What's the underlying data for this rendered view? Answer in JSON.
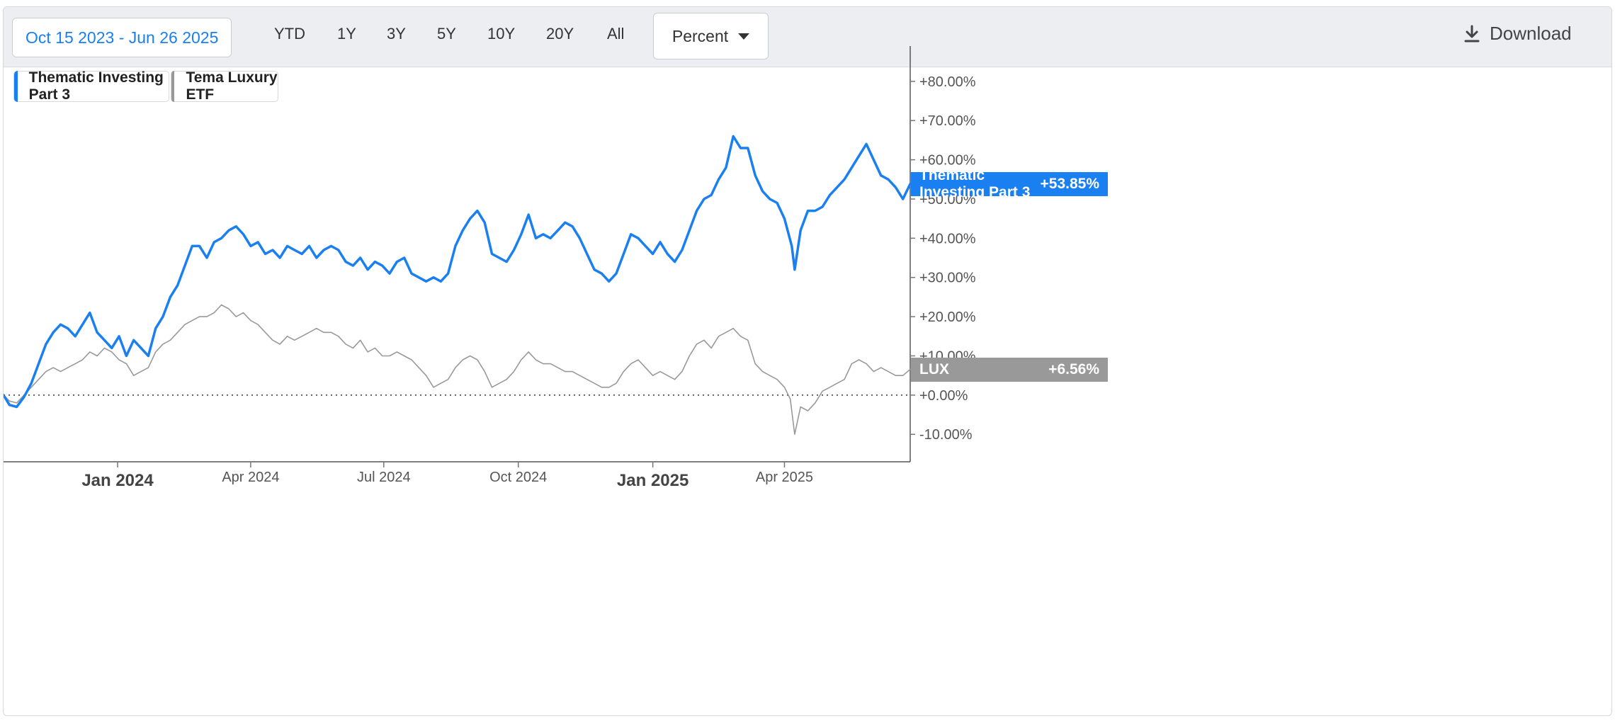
{
  "toolbar": {
    "date_range": "Oct 15 2023 - Jun 26 2025",
    "periods": [
      "YTD",
      "1Y",
      "3Y",
      "5Y",
      "10Y",
      "20Y",
      "All"
    ],
    "mode": "Percent",
    "download_label": "Download"
  },
  "colors": {
    "primary": "#1a7ff0",
    "secondary": "#999999"
  },
  "chart_data": {
    "type": "line",
    "y_unit": "percent",
    "ylim": [
      -17,
      89
    ],
    "x_range": [
      "2023-10-15",
      "2025-06-26"
    ],
    "x_ticks": [
      {
        "date": "2024-01-01",
        "label": "Jan 2024",
        "major": true
      },
      {
        "date": "2024-04-01",
        "label": "Apr 2024",
        "major": false
      },
      {
        "date": "2024-07-01",
        "label": "Jul 2024",
        "major": false
      },
      {
        "date": "2024-10-01",
        "label": "Oct 2024",
        "major": false
      },
      {
        "date": "2025-01-01",
        "label": "Jan 2025",
        "major": true
      },
      {
        "date": "2025-04-01",
        "label": "Apr 2025",
        "major": false
      }
    ],
    "y_ticks": [
      {
        "value": 80,
        "label": "+80.00%"
      },
      {
        "value": 70,
        "label": "+70.00%"
      },
      {
        "value": 60,
        "label": "+60.00%"
      },
      {
        "value": 50,
        "label": "+50.00%"
      },
      {
        "value": 40,
        "label": "+40.00%"
      },
      {
        "value": 30,
        "label": "+30.00%"
      },
      {
        "value": 20,
        "label": "+20.00%"
      },
      {
        "value": 10,
        "label": "+10.00%"
      },
      {
        "value": 0,
        "label": "+0.00%"
      },
      {
        "value": -10,
        "label": "-10.00%"
      }
    ],
    "zero_line": true,
    "series": [
      {
        "name": "Thematic Investing Part 3",
        "end_label": "Thematic Investing Part 3",
        "end_value_label": "+53.85%",
        "color": "#1a7ff0",
        "points": [
          [
            "2023-10-15",
            0
          ],
          [
            "2023-10-19",
            -2.5
          ],
          [
            "2023-10-24",
            -3
          ],
          [
            "2023-10-29",
            -0.5
          ],
          [
            "2023-11-03",
            3
          ],
          [
            "2023-11-08",
            8
          ],
          [
            "2023-11-13",
            13
          ],
          [
            "2023-11-18",
            16
          ],
          [
            "2023-11-23",
            18
          ],
          [
            "2023-11-28",
            17
          ],
          [
            "2023-12-03",
            15
          ],
          [
            "2023-12-08",
            18
          ],
          [
            "2023-12-13",
            21
          ],
          [
            "2023-12-18",
            16
          ],
          [
            "2023-12-23",
            14
          ],
          [
            "2023-12-28",
            12
          ],
          [
            "2024-01-02",
            15
          ],
          [
            "2024-01-07",
            10
          ],
          [
            "2024-01-12",
            14
          ],
          [
            "2024-01-17",
            12
          ],
          [
            "2024-01-22",
            10
          ],
          [
            "2024-01-27",
            17
          ],
          [
            "2024-02-01",
            20
          ],
          [
            "2024-02-06",
            25
          ],
          [
            "2024-02-11",
            28
          ],
          [
            "2024-02-16",
            33
          ],
          [
            "2024-02-21",
            38
          ],
          [
            "2024-02-26",
            38
          ],
          [
            "2024-03-02",
            35
          ],
          [
            "2024-03-07",
            39
          ],
          [
            "2024-03-12",
            40
          ],
          [
            "2024-03-17",
            42
          ],
          [
            "2024-03-22",
            43
          ],
          [
            "2024-03-27",
            41
          ],
          [
            "2024-04-01",
            38
          ],
          [
            "2024-04-06",
            39
          ],
          [
            "2024-04-11",
            36
          ],
          [
            "2024-04-16",
            37
          ],
          [
            "2024-04-21",
            35
          ],
          [
            "2024-04-26",
            38
          ],
          [
            "2024-05-01",
            37
          ],
          [
            "2024-05-06",
            36
          ],
          [
            "2024-05-11",
            38
          ],
          [
            "2024-05-16",
            35
          ],
          [
            "2024-05-21",
            37
          ],
          [
            "2024-05-26",
            38
          ],
          [
            "2024-05-31",
            37
          ],
          [
            "2024-06-05",
            34
          ],
          [
            "2024-06-10",
            33
          ],
          [
            "2024-06-15",
            35
          ],
          [
            "2024-06-20",
            32
          ],
          [
            "2024-06-25",
            34
          ],
          [
            "2024-06-30",
            33
          ],
          [
            "2024-07-05",
            31
          ],
          [
            "2024-07-10",
            34
          ],
          [
            "2024-07-15",
            35
          ],
          [
            "2024-07-20",
            31
          ],
          [
            "2024-07-25",
            30
          ],
          [
            "2024-07-30",
            29
          ],
          [
            "2024-08-04",
            30
          ],
          [
            "2024-08-09",
            29
          ],
          [
            "2024-08-14",
            31
          ],
          [
            "2024-08-19",
            38
          ],
          [
            "2024-08-24",
            42
          ],
          [
            "2024-08-29",
            45
          ],
          [
            "2024-09-03",
            47
          ],
          [
            "2024-09-08",
            44
          ],
          [
            "2024-09-13",
            36
          ],
          [
            "2024-09-18",
            35
          ],
          [
            "2024-09-23",
            34
          ],
          [
            "2024-09-28",
            37
          ],
          [
            "2024-10-03",
            41
          ],
          [
            "2024-10-08",
            46
          ],
          [
            "2024-10-13",
            40
          ],
          [
            "2024-10-18",
            41
          ],
          [
            "2024-10-23",
            40
          ],
          [
            "2024-10-28",
            42
          ],
          [
            "2024-11-02",
            44
          ],
          [
            "2024-11-07",
            43
          ],
          [
            "2024-11-12",
            40
          ],
          [
            "2024-11-17",
            36
          ],
          [
            "2024-11-22",
            32
          ],
          [
            "2024-11-27",
            31
          ],
          [
            "2024-12-02",
            29
          ],
          [
            "2024-12-07",
            31
          ],
          [
            "2024-12-12",
            36
          ],
          [
            "2024-12-17",
            41
          ],
          [
            "2024-12-22",
            40
          ],
          [
            "2024-12-27",
            38
          ],
          [
            "2025-01-01",
            36
          ],
          [
            "2025-01-06",
            39
          ],
          [
            "2025-01-11",
            36
          ],
          [
            "2025-01-16",
            34
          ],
          [
            "2025-01-21",
            37
          ],
          [
            "2025-01-26",
            42
          ],
          [
            "2025-01-31",
            47
          ],
          [
            "2025-02-05",
            50
          ],
          [
            "2025-02-10",
            51
          ],
          [
            "2025-02-15",
            55
          ],
          [
            "2025-02-20",
            58
          ],
          [
            "2025-02-25",
            66
          ],
          [
            "2025-03-02",
            63
          ],
          [
            "2025-03-07",
            63
          ],
          [
            "2025-03-12",
            56
          ],
          [
            "2025-03-17",
            52
          ],
          [
            "2025-03-22",
            50
          ],
          [
            "2025-03-27",
            49
          ],
          [
            "2025-04-01",
            45
          ],
          [
            "2025-04-06",
            38
          ],
          [
            "2025-04-08",
            32
          ],
          [
            "2025-04-12",
            42
          ],
          [
            "2025-04-17",
            47
          ],
          [
            "2025-04-22",
            47
          ],
          [
            "2025-04-27",
            48
          ],
          [
            "2025-05-02",
            51
          ],
          [
            "2025-05-07",
            53
          ],
          [
            "2025-05-12",
            55
          ],
          [
            "2025-05-17",
            58
          ],
          [
            "2025-05-22",
            61
          ],
          [
            "2025-05-27",
            64
          ],
          [
            "2025-06-01",
            60
          ],
          [
            "2025-06-06",
            56
          ],
          [
            "2025-06-11",
            55
          ],
          [
            "2025-06-16",
            53
          ],
          [
            "2025-06-21",
            50
          ],
          [
            "2025-06-26",
            53.85
          ]
        ]
      },
      {
        "name": "Tema Luxury ETF",
        "end_label": "LUX",
        "end_value_label": "+6.56%",
        "color": "#999999",
        "points": [
          [
            "2023-10-15",
            0
          ],
          [
            "2023-10-19",
            -1.5
          ],
          [
            "2023-10-24",
            -2
          ],
          [
            "2023-10-29",
            0
          ],
          [
            "2023-11-03",
            2
          ],
          [
            "2023-11-08",
            4
          ],
          [
            "2023-11-13",
            6
          ],
          [
            "2023-11-18",
            7
          ],
          [
            "2023-11-23",
            6
          ],
          [
            "2023-11-28",
            7
          ],
          [
            "2023-12-03",
            8
          ],
          [
            "2023-12-08",
            9
          ],
          [
            "2023-12-13",
            11
          ],
          [
            "2023-12-18",
            10
          ],
          [
            "2023-12-23",
            12
          ],
          [
            "2023-12-28",
            11
          ],
          [
            "2024-01-02",
            9
          ],
          [
            "2024-01-07",
            8
          ],
          [
            "2024-01-12",
            5
          ],
          [
            "2024-01-17",
            6
          ],
          [
            "2024-01-22",
            7
          ],
          [
            "2024-01-27",
            11
          ],
          [
            "2024-02-01",
            13
          ],
          [
            "2024-02-06",
            14
          ],
          [
            "2024-02-11",
            16
          ],
          [
            "2024-02-16",
            18
          ],
          [
            "2024-02-21",
            19
          ],
          [
            "2024-02-26",
            20
          ],
          [
            "2024-03-02",
            20
          ],
          [
            "2024-03-07",
            21
          ],
          [
            "2024-03-12",
            23
          ],
          [
            "2024-03-17",
            22
          ],
          [
            "2024-03-22",
            20
          ],
          [
            "2024-03-27",
            21
          ],
          [
            "2024-04-01",
            19
          ],
          [
            "2024-04-06",
            18
          ],
          [
            "2024-04-11",
            16
          ],
          [
            "2024-04-16",
            14
          ],
          [
            "2024-04-21",
            13
          ],
          [
            "2024-04-26",
            15
          ],
          [
            "2024-05-01",
            14
          ],
          [
            "2024-05-06",
            15
          ],
          [
            "2024-05-11",
            16
          ],
          [
            "2024-05-16",
            17
          ],
          [
            "2024-05-21",
            16
          ],
          [
            "2024-05-26",
            16
          ],
          [
            "2024-05-31",
            15
          ],
          [
            "2024-06-05",
            13
          ],
          [
            "2024-06-10",
            12
          ],
          [
            "2024-06-15",
            14
          ],
          [
            "2024-06-20",
            11
          ],
          [
            "2024-06-25",
            12
          ],
          [
            "2024-06-30",
            10
          ],
          [
            "2024-07-05",
            10
          ],
          [
            "2024-07-10",
            11
          ],
          [
            "2024-07-15",
            10
          ],
          [
            "2024-07-20",
            9
          ],
          [
            "2024-07-25",
            7
          ],
          [
            "2024-07-30",
            5
          ],
          [
            "2024-08-04",
            2
          ],
          [
            "2024-08-09",
            3
          ],
          [
            "2024-08-14",
            4
          ],
          [
            "2024-08-19",
            7
          ],
          [
            "2024-08-24",
            9
          ],
          [
            "2024-08-29",
            10
          ],
          [
            "2024-09-03",
            9
          ],
          [
            "2024-09-08",
            6
          ],
          [
            "2024-09-13",
            2
          ],
          [
            "2024-09-18",
            3
          ],
          [
            "2024-09-23",
            4
          ],
          [
            "2024-09-28",
            6
          ],
          [
            "2024-10-03",
            9
          ],
          [
            "2024-10-08",
            11
          ],
          [
            "2024-10-13",
            9
          ],
          [
            "2024-10-18",
            8
          ],
          [
            "2024-10-23",
            8
          ],
          [
            "2024-10-28",
            7
          ],
          [
            "2024-11-02",
            6
          ],
          [
            "2024-11-07",
            6
          ],
          [
            "2024-11-12",
            5
          ],
          [
            "2024-11-17",
            4
          ],
          [
            "2024-11-22",
            3
          ],
          [
            "2024-11-27",
            2
          ],
          [
            "2024-12-02",
            2
          ],
          [
            "2024-12-07",
            3
          ],
          [
            "2024-12-12",
            6
          ],
          [
            "2024-12-17",
            8
          ],
          [
            "2024-12-22",
            9
          ],
          [
            "2024-12-27",
            7
          ],
          [
            "2025-01-01",
            5
          ],
          [
            "2025-01-06",
            6
          ],
          [
            "2025-01-11",
            5
          ],
          [
            "2025-01-16",
            4
          ],
          [
            "2025-01-21",
            6
          ],
          [
            "2025-01-26",
            10
          ],
          [
            "2025-01-31",
            13
          ],
          [
            "2025-02-05",
            14
          ],
          [
            "2025-02-10",
            12
          ],
          [
            "2025-02-15",
            15
          ],
          [
            "2025-02-20",
            16
          ],
          [
            "2025-02-25",
            17
          ],
          [
            "2025-03-02",
            15
          ],
          [
            "2025-03-07",
            14
          ],
          [
            "2025-03-12",
            8
          ],
          [
            "2025-03-17",
            6
          ],
          [
            "2025-03-22",
            5
          ],
          [
            "2025-03-27",
            4
          ],
          [
            "2025-04-01",
            2
          ],
          [
            "2025-04-05",
            -1
          ],
          [
            "2025-04-08",
            -10
          ],
          [
            "2025-04-12",
            -3
          ],
          [
            "2025-04-17",
            -4
          ],
          [
            "2025-04-22",
            -2
          ],
          [
            "2025-04-27",
            1
          ],
          [
            "2025-05-02",
            2
          ],
          [
            "2025-05-07",
            3
          ],
          [
            "2025-05-12",
            4
          ],
          [
            "2025-05-17",
            8
          ],
          [
            "2025-05-22",
            9
          ],
          [
            "2025-05-27",
            8
          ],
          [
            "2025-06-01",
            6
          ],
          [
            "2025-06-06",
            7
          ],
          [
            "2025-06-11",
            6
          ],
          [
            "2025-06-16",
            5
          ],
          [
            "2025-06-21",
            5
          ],
          [
            "2025-06-26",
            6.56
          ]
        ]
      }
    ]
  }
}
